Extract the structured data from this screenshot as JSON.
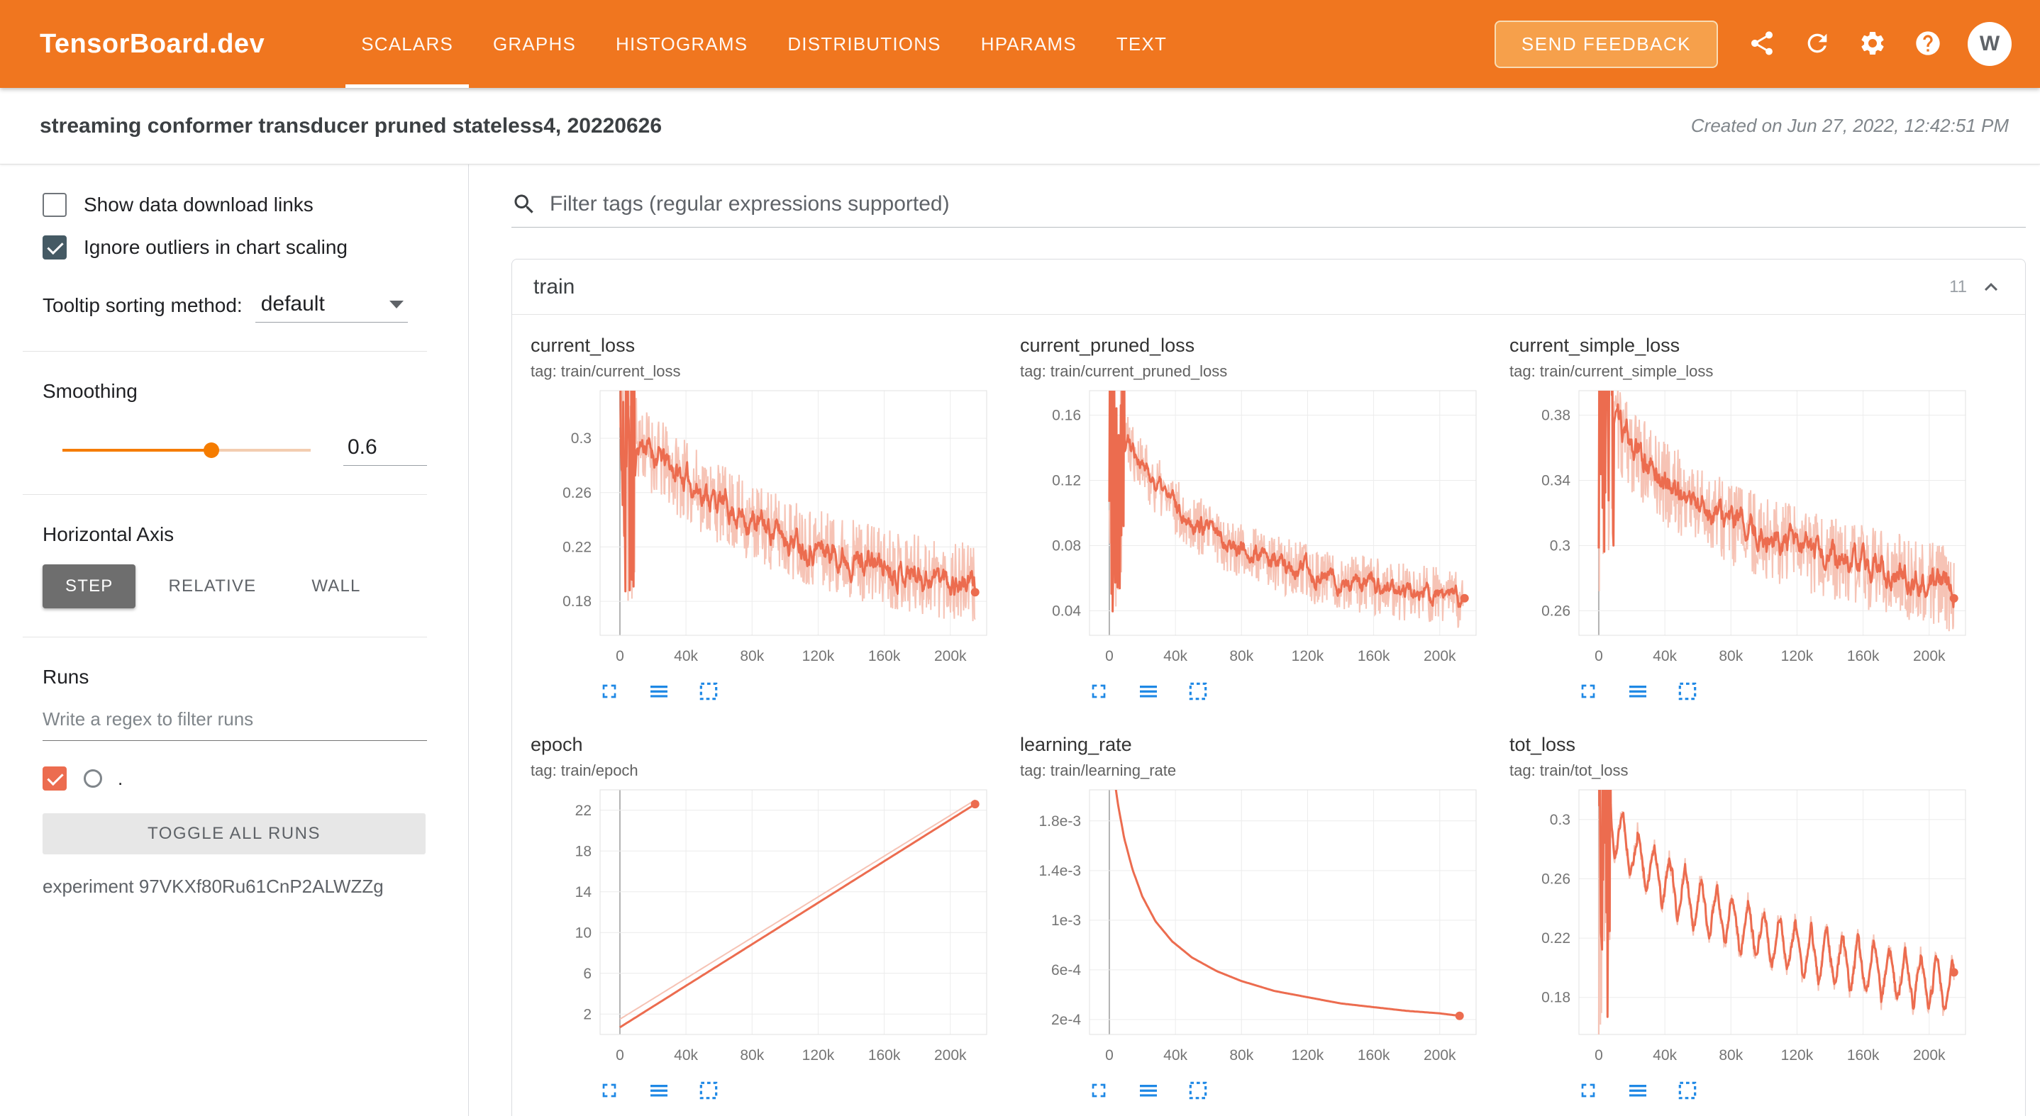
{
  "colors": {
    "header_bg": "#f0761f",
    "accent": "#f57c00",
    "run_color": "#ec6c4f",
    "run_color_light": "#f6c3b5",
    "icon_blue": "#1e88e5"
  },
  "header": {
    "title": "TensorBoard.dev",
    "tabs": [
      {
        "label": "SCALARS",
        "active": true
      },
      {
        "label": "GRAPHS",
        "active": false
      },
      {
        "label": "HISTOGRAMS",
        "active": false
      },
      {
        "label": "DISTRIBUTIONS",
        "active": false
      },
      {
        "label": "HPARAMS",
        "active": false
      },
      {
        "label": "TEXT",
        "active": false
      }
    ],
    "feedback_button": "SEND FEEDBACK",
    "icons": [
      "share-icon",
      "refresh-icon",
      "settings-icon",
      "help-icon"
    ],
    "avatar_letter": "W"
  },
  "experiment_bar": {
    "title": "streaming conformer transducer pruned stateless4, 20220626",
    "created": "Created on Jun 27, 2022, 12:42:51 PM"
  },
  "sidebar": {
    "checkboxes": [
      {
        "label": "Show data download links",
        "checked": false
      },
      {
        "label": "Ignore outliers in chart scaling",
        "checked": true
      }
    ],
    "tooltip_sort_label": "Tooltip sorting method:",
    "tooltip_sort_value": "default",
    "smoothing_label": "Smoothing",
    "smoothing_value": "0.6",
    "horizontal_axis_label": "Horizontal Axis",
    "axis_buttons": [
      {
        "label": "STEP",
        "active": true
      },
      {
        "label": "RELATIVE",
        "active": false
      },
      {
        "label": "WALL",
        "active": false
      }
    ],
    "runs_label": "Runs",
    "runs_filter_placeholder": "Write a regex to filter runs",
    "run_item": {
      "name": ".",
      "checked": true
    },
    "toggle_all_label": "TOGGLE ALL RUNS",
    "experiment_label": "experiment 97VKXf80Ru61CnP2ALWZZg"
  },
  "main": {
    "filter_placeholder": "Filter tags (regular expressions supported)",
    "group": {
      "title": "train",
      "count": "11"
    }
  },
  "chart_data": {
    "type": "line",
    "xlabel": "step",
    "xlim": [
      -12000,
      222000
    ],
    "xticks": [
      {
        "v": 0,
        "label": "0"
      },
      {
        "v": 40000,
        "label": "40k"
      },
      {
        "v": 80000,
        "label": "80k"
      },
      {
        "v": 120000,
        "label": "120k"
      },
      {
        "v": 160000,
        "label": "160k"
      },
      {
        "v": 200000,
        "label": "200k"
      }
    ],
    "legend": [
      {
        "run": ".",
        "smoothing": 0.6
      }
    ],
    "charts": [
      {
        "id": "current_loss",
        "title": "current_loss",
        "tag": "tag: train/current_loss",
        "ylim": [
          0.155,
          0.335
        ],
        "yticks": [
          {
            "v": 0.18,
            "label": "0.18"
          },
          {
            "v": 0.22,
            "label": "0.22"
          },
          {
            "v": 0.26,
            "label": "0.26"
          },
          {
            "v": 0.3,
            "label": "0.3"
          }
        ],
        "anchors": [
          [
            0,
            0.3
          ],
          [
            8000,
            0.303
          ],
          [
            20000,
            0.288
          ],
          [
            40000,
            0.268
          ],
          [
            60000,
            0.252
          ],
          [
            80000,
            0.238
          ],
          [
            100000,
            0.228
          ],
          [
            120000,
            0.219
          ],
          [
            140000,
            0.212
          ],
          [
            160000,
            0.206
          ],
          [
            180000,
            0.2
          ],
          [
            200000,
            0.196
          ],
          [
            215000,
            0.191
          ]
        ],
        "noise": 0.03,
        "spike": {
          "until": 9000,
          "amp": 0.12
        },
        "ema": 0.2,
        "seed": 11,
        "end_dot": true
      },
      {
        "id": "current_pruned_loss",
        "title": "current_pruned_loss",
        "tag": "tag: train/current_pruned_loss",
        "ylim": [
          0.025,
          0.175
        ],
        "yticks": [
          {
            "v": 0.04,
            "label": "0.04"
          },
          {
            "v": 0.08,
            "label": "0.08"
          },
          {
            "v": 0.12,
            "label": "0.12"
          },
          {
            "v": 0.16,
            "label": "0.16"
          }
        ],
        "anchors": [
          [
            0,
            0.15
          ],
          [
            8000,
            0.152
          ],
          [
            20000,
            0.127
          ],
          [
            40000,
            0.103
          ],
          [
            60000,
            0.088
          ],
          [
            80000,
            0.077
          ],
          [
            100000,
            0.069
          ],
          [
            120000,
            0.063
          ],
          [
            140000,
            0.058
          ],
          [
            160000,
            0.055
          ],
          [
            180000,
            0.051
          ],
          [
            200000,
            0.049
          ],
          [
            215000,
            0.046
          ]
        ],
        "noise": 0.018,
        "spike": {
          "until": 9000,
          "amp": 0.1
        },
        "ema": 0.2,
        "seed": 22,
        "end_dot": true
      },
      {
        "id": "current_simple_loss",
        "title": "current_simple_loss",
        "tag": "tag: train/current_simple_loss",
        "ylim": [
          0.245,
          0.395
        ],
        "yticks": [
          {
            "v": 0.26,
            "label": "0.26"
          },
          {
            "v": 0.3,
            "label": "0.3"
          },
          {
            "v": 0.34,
            "label": "0.34"
          },
          {
            "v": 0.38,
            "label": "0.38"
          }
        ],
        "anchors": [
          [
            0,
            0.372
          ],
          [
            8000,
            0.376
          ],
          [
            20000,
            0.358
          ],
          [
            40000,
            0.338
          ],
          [
            60000,
            0.325
          ],
          [
            80000,
            0.314
          ],
          [
            100000,
            0.305
          ],
          [
            120000,
            0.298
          ],
          [
            140000,
            0.292
          ],
          [
            160000,
            0.287
          ],
          [
            180000,
            0.282
          ],
          [
            200000,
            0.277
          ],
          [
            215000,
            0.272
          ]
        ],
        "noise": 0.026,
        "spike": {
          "until": 9000,
          "amp": 0.11
        },
        "ema": 0.2,
        "seed": 33,
        "end_dot": true
      },
      {
        "id": "epoch",
        "title": "epoch",
        "tag": "tag: train/epoch",
        "ylim": [
          0,
          24
        ],
        "yticks": [
          {
            "v": 2,
            "label": "2"
          },
          {
            "v": 6,
            "label": "6"
          },
          {
            "v": 10,
            "label": "10"
          },
          {
            "v": 14,
            "label": "14"
          },
          {
            "v": 18,
            "label": "18"
          },
          {
            "v": 22,
            "label": "22"
          }
        ],
        "anchors": [
          [
            0,
            0.7
          ],
          [
            215000,
            22.6
          ]
        ],
        "raw_anchors": [
          [
            0,
            1.5
          ],
          [
            215000,
            23.0
          ]
        ],
        "noise": 0,
        "seed": 44,
        "n": 160,
        "end_dot": true
      },
      {
        "id": "learning_rate",
        "title": "learning_rate",
        "tag": "tag: train/learning_rate",
        "ylim": [
          8e-05,
          0.00205
        ],
        "yticks": [
          {
            "v": 0.0002,
            "label": "2e-4"
          },
          {
            "v": 0.0006,
            "label": "6e-4"
          },
          {
            "v": 0.001,
            "label": "1e-3"
          },
          {
            "v": 0.0014,
            "label": "1.4e-3"
          },
          {
            "v": 0.0018,
            "label": "1.8e-3"
          }
        ],
        "anchors": [
          [
            2500,
            0.0022
          ],
          [
            5000,
            0.00195
          ],
          [
            9000,
            0.00166
          ],
          [
            14000,
            0.00141
          ],
          [
            20000,
            0.00119
          ],
          [
            28000,
            0.00099
          ],
          [
            38000,
            0.00083
          ],
          [
            50000,
            0.0007
          ],
          [
            65000,
            0.00059
          ],
          [
            80000,
            0.00051
          ],
          [
            100000,
            0.00043
          ],
          [
            120000,
            0.00038
          ],
          [
            140000,
            0.00033
          ],
          [
            160000,
            0.0003
          ],
          [
            180000,
            0.00027
          ],
          [
            200000,
            0.00025
          ],
          [
            212000,
            0.00023
          ]
        ],
        "raw_anchors": [
          [
            2500,
            0.0022
          ],
          [
            5000,
            0.00195
          ],
          [
            9000,
            0.00166
          ],
          [
            14000,
            0.00141
          ],
          [
            20000,
            0.00119
          ],
          [
            28000,
            0.00099
          ],
          [
            38000,
            0.00083
          ],
          [
            50000,
            0.0007
          ],
          [
            65000,
            0.00059
          ],
          [
            80000,
            0.00051
          ],
          [
            100000,
            0.00043
          ],
          [
            120000,
            0.00038
          ],
          [
            140000,
            0.00033
          ],
          [
            160000,
            0.0003
          ],
          [
            180000,
            0.00027
          ],
          [
            200000,
            0.00025
          ],
          [
            212000,
            0.00023
          ]
        ],
        "noise": 0,
        "seed": 55,
        "n": 300,
        "end_dot": true
      },
      {
        "id": "tot_loss",
        "title": "tot_loss",
        "tag": "tag: train/tot_loss",
        "ylim": [
          0.155,
          0.32
        ],
        "yticks": [
          {
            "v": 0.18,
            "label": "0.18"
          },
          {
            "v": 0.22,
            "label": "0.22"
          },
          {
            "v": 0.26,
            "label": "0.26"
          },
          {
            "v": 0.3,
            "label": "0.3"
          }
        ],
        "anchors": [
          [
            0,
            0.298
          ],
          [
            8000,
            0.295
          ],
          [
            20000,
            0.279
          ],
          [
            40000,
            0.258
          ],
          [
            60000,
            0.243
          ],
          [
            80000,
            0.231
          ],
          [
            100000,
            0.221
          ],
          [
            120000,
            0.213
          ],
          [
            140000,
            0.206
          ],
          [
            160000,
            0.2
          ],
          [
            180000,
            0.195
          ],
          [
            200000,
            0.19
          ],
          [
            215000,
            0.187
          ]
        ],
        "noise": 0.006,
        "saw": {
          "period": 9500,
          "amp": 0.02
        },
        "spike": {
          "until": 7000,
          "amp": 0.12
        },
        "ema": 0.5,
        "seed": 66,
        "end_dot": true
      }
    ]
  }
}
